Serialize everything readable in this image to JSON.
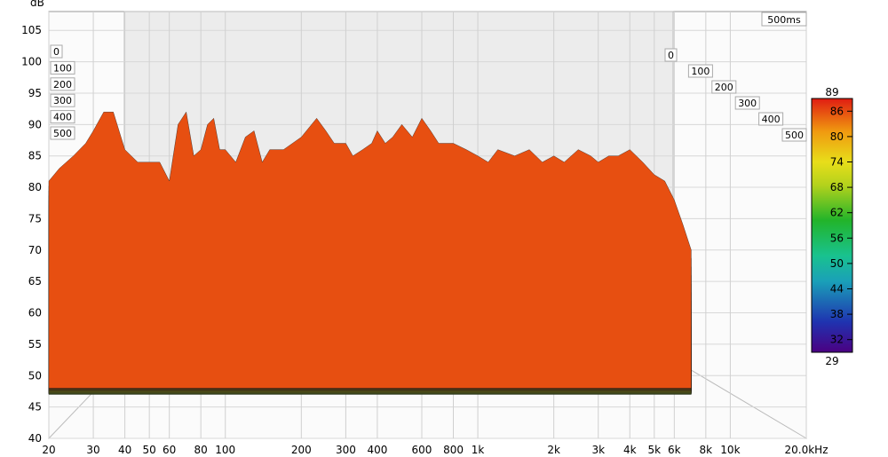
{
  "chart_data": {
    "type": "waterfall-3d",
    "ylabel": "dB",
    "time_label": "500ms",
    "y_ticks": [
      40,
      45,
      50,
      55,
      60,
      65,
      70,
      75,
      80,
      85,
      90,
      95,
      100,
      105
    ],
    "ylim": [
      40,
      108
    ],
    "x_scale": "log",
    "x_ticks": [
      {
        "v": 20,
        "label": "20"
      },
      {
        "v": 30,
        "label": "30"
      },
      {
        "v": 40,
        "label": "40"
      },
      {
        "v": 50,
        "label": "50"
      },
      {
        "v": 60,
        "label": "60"
      },
      {
        "v": 80,
        "label": "80"
      },
      {
        "v": 100,
        "label": "100"
      },
      {
        "v": 200,
        "label": "200"
      },
      {
        "v": 300,
        "label": "300"
      },
      {
        "v": 400,
        "label": "400"
      },
      {
        "v": 600,
        "label": "600"
      },
      {
        "v": 800,
        "label": "800"
      },
      {
        "v": 1000,
        "label": "1k"
      },
      {
        "v": 2000,
        "label": "2k"
      },
      {
        "v": 3000,
        "label": "3k"
      },
      {
        "v": 4000,
        "label": "4k"
      },
      {
        "v": 5000,
        "label": "5k"
      },
      {
        "v": 6000,
        "label": "6k"
      },
      {
        "v": 8000,
        "label": "8k"
      },
      {
        "v": 10000,
        "label": "10k"
      },
      {
        "v": 20000,
        "label": "20.0kHz"
      }
    ],
    "xlim": [
      20,
      20000
    ],
    "time_ticks_ms": [
      "0",
      "100",
      "200",
      "300",
      "400",
      "500"
    ],
    "colorbar": {
      "min": 29,
      "max": 89,
      "ticks": [
        "86",
        "80",
        "74",
        "68",
        "62",
        "56",
        "50",
        "44",
        "38",
        "32"
      ],
      "min_label": "29",
      "max_label": "89"
    },
    "front_slice": {
      "x": [
        20,
        22,
        25,
        28,
        30,
        33,
        36,
        40,
        45,
        50,
        55,
        60,
        65,
        70,
        75,
        80,
        85,
        90,
        95,
        100,
        110,
        120,
        130,
        140,
        150,
        170,
        200,
        230,
        250,
        270,
        300,
        320,
        350,
        380,
        400,
        430,
        460,
        500,
        550,
        600,
        650,
        700,
        750,
        800,
        900,
        1000,
        1100,
        1200,
        1400,
        1600,
        1800,
        2000,
        2200,
        2500,
        2800,
        3000,
        3300,
        3600,
        4000,
        4500,
        5000,
        5500,
        6000,
        6500,
        7000
      ],
      "y": [
        81,
        83,
        85,
        87,
        89,
        92,
        92,
        86,
        84,
        84,
        84,
        81,
        90,
        92,
        85,
        86,
        90,
        91,
        86,
        86,
        84,
        88,
        89,
        84,
        86,
        86,
        88,
        91,
        89,
        87,
        87,
        85,
        86,
        87,
        89,
        87,
        88,
        90,
        88,
        91,
        89,
        87,
        87,
        87,
        86,
        85,
        84,
        86,
        85,
        86,
        84,
        85,
        84,
        86,
        85,
        84,
        85,
        85,
        86,
        84,
        82,
        81,
        78,
        74,
        70
      ]
    }
  }
}
